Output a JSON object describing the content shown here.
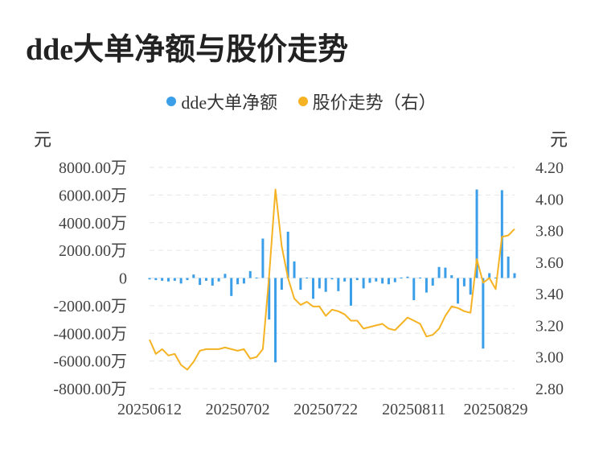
{
  "title": "dde大单净额与股价走势",
  "legend": [
    {
      "label": "dde大单净额",
      "color": "#3a9ee8"
    },
    {
      "label": "股价走势（右）",
      "color": "#f5b324"
    }
  ],
  "units": {
    "left": "元",
    "right": "元"
  },
  "chart_data": {
    "type": "bar+line",
    "x_tick_labels": [
      "20250612",
      "20250702",
      "20250722",
      "20250811",
      "20250829"
    ],
    "x_tick_indices": [
      0,
      14,
      28,
      42,
      55
    ],
    "left_axis": {
      "ticks": [
        "8000.00万",
        "6000.00万",
        "4000.00万",
        "2000.00万",
        "0",
        "-2000.00万",
        "-4000.00万",
        "-6000.00万",
        "-8000.00万"
      ],
      "range": [
        -8000,
        8000
      ],
      "unit": "万"
    },
    "right_axis": {
      "ticks": [
        "4.20",
        "4.00",
        "3.80",
        "3.60",
        "3.40",
        "3.20",
        "3.00",
        "2.80"
      ],
      "range": [
        2.8,
        4.2
      ]
    },
    "grid": "horizontal dashed",
    "series": [
      {
        "name": "dde大单净额",
        "kind": "bar",
        "axis": "left",
        "values": [
          -100,
          -150,
          -200,
          -250,
          -200,
          -400,
          -150,
          250,
          -500,
          -200,
          -550,
          -250,
          300,
          -1300,
          -450,
          -400,
          500,
          -50,
          2850,
          -3000,
          -6100,
          -850,
          3350,
          1200,
          -850,
          0,
          -1500,
          -750,
          -1000,
          -100,
          -950,
          -250,
          -2000,
          -150,
          -750,
          -350,
          -250,
          -400,
          -450,
          -300,
          0,
          100,
          -1600,
          50,
          -1050,
          -550,
          800,
          750,
          200,
          -1850,
          -600,
          -1200,
          6400,
          -5100,
          350,
          0,
          6350,
          1550,
          350
        ]
      },
      {
        "name": "股价走势（右）",
        "kind": "line",
        "axis": "right",
        "values": [
          3.11,
          3.02,
          3.05,
          3.01,
          3.02,
          2.95,
          2.92,
          2.97,
          3.04,
          3.05,
          3.05,
          3.05,
          3.06,
          3.05,
          3.04,
          3.05,
          2.99,
          3.0,
          3.05,
          3.51,
          4.06,
          3.7,
          3.5,
          3.37,
          3.33,
          3.35,
          3.32,
          3.32,
          3.26,
          3.3,
          3.29,
          3.27,
          3.23,
          3.23,
          3.18,
          3.19,
          3.2,
          3.21,
          3.18,
          3.17,
          3.21,
          3.25,
          3.23,
          3.21,
          3.13,
          3.14,
          3.18,
          3.26,
          3.32,
          3.31,
          3.29,
          3.28,
          3.62,
          3.47,
          3.5,
          3.43,
          3.76,
          3.77,
          3.81
        ]
      }
    ]
  }
}
